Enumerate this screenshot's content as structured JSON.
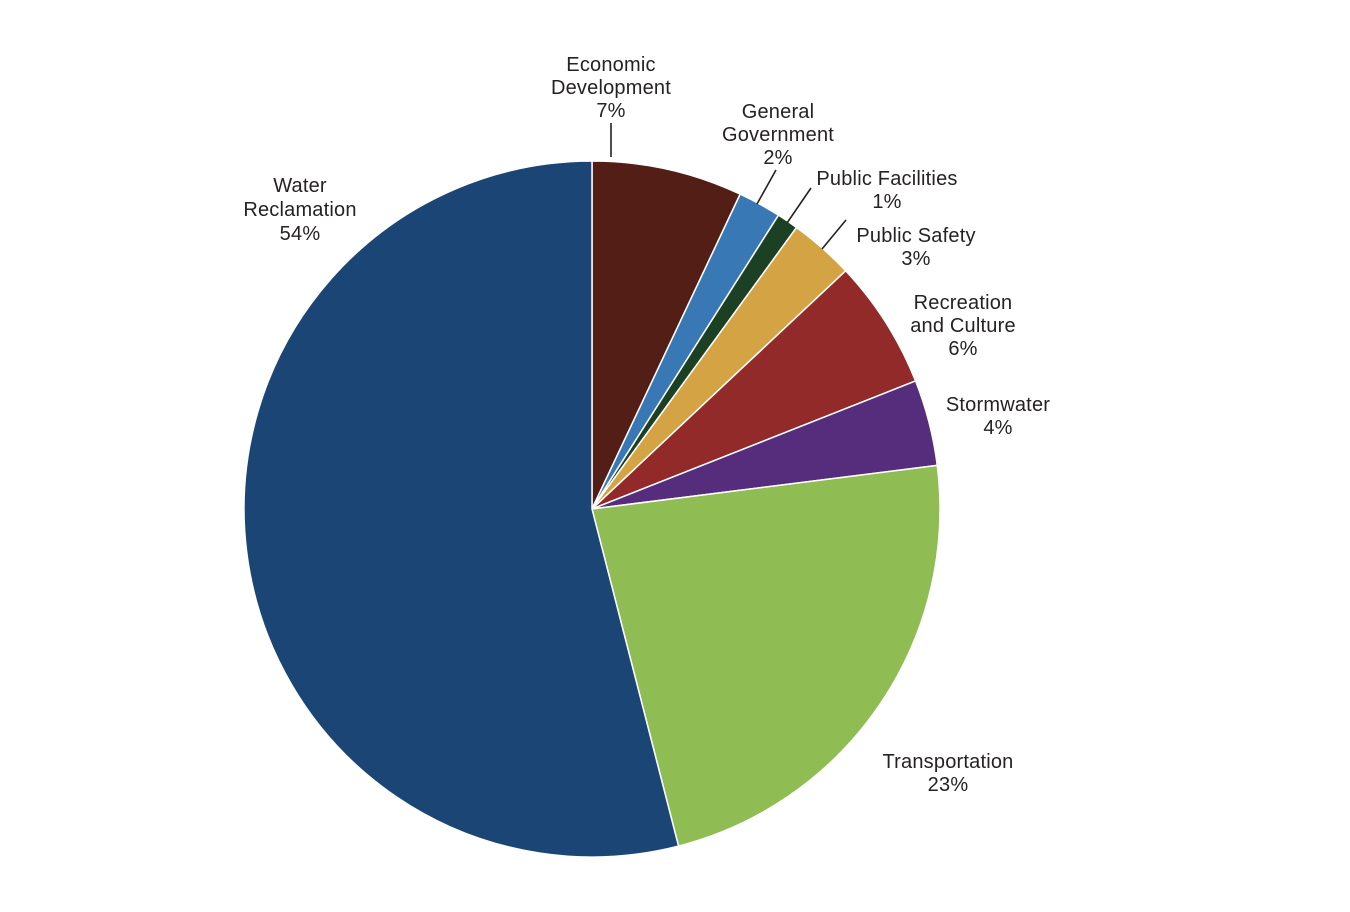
{
  "chart_data": {
    "type": "pie",
    "title": "",
    "start_angle_deg": 0,
    "direction": "clockwise",
    "background_color": "#ffffff",
    "label_text_color": "#262223",
    "slice_separator_color": "#ffffff",
    "slices": [
      {
        "id": "economic-development",
        "label": "Economic Development",
        "label_lines": [
          "Economic",
          "Development",
          "7%"
        ],
        "value": 7,
        "value_label": "7%",
        "color": "#531e16"
      },
      {
        "id": "general-government",
        "label": "General Government",
        "label_lines": [
          "General",
          "Government",
          "2%"
        ],
        "value": 2,
        "value_label": "2%",
        "color": "#3878b4"
      },
      {
        "id": "public-facilities",
        "label": "Public Facilities",
        "label_lines": [
          "Public Facilities",
          "1%"
        ],
        "value": 1,
        "value_label": "1%",
        "color": "#1c4023"
      },
      {
        "id": "public-safety",
        "label": "Public Safety",
        "label_lines": [
          "Public Safety",
          "3%"
        ],
        "value": 3,
        "value_label": "3%",
        "color": "#d4a343"
      },
      {
        "id": "recreation-and-culture",
        "label": "Recreation and Culture",
        "label_lines": [
          "Recreation",
          "and Culture",
          "6%"
        ],
        "value": 6,
        "value_label": "6%",
        "color": "#932a2a"
      },
      {
        "id": "stormwater",
        "label": "Stormwater",
        "label_lines": [
          "Stormwater",
          "4%"
        ],
        "value": 4,
        "value_label": "4%",
        "color": "#562d7d"
      },
      {
        "id": "transportation",
        "label": "Transportation",
        "label_lines": [
          "Transportation",
          "23%"
        ],
        "value": 23,
        "value_label": "23%",
        "color": "#8fbd54"
      },
      {
        "id": "water-reclamation",
        "label": "Water Reclamation",
        "label_lines": [
          "Water",
          "Reclamation",
          "54%"
        ],
        "value": 54,
        "value_label": "54%",
        "color": "#1b4575"
      }
    ]
  }
}
